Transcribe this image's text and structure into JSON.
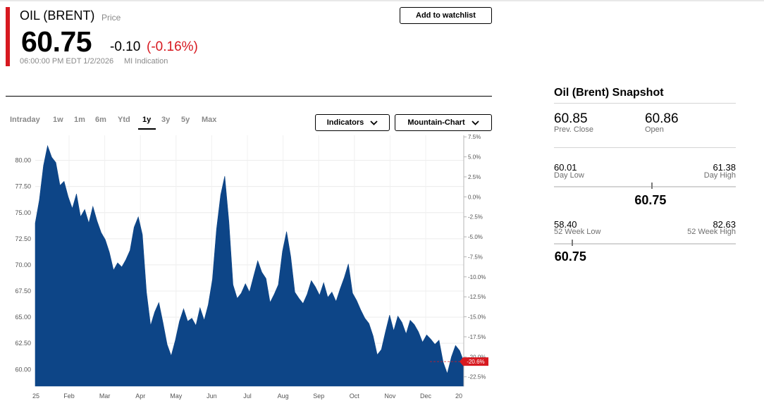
{
  "quote": {
    "name": "OIL (BRENT)",
    "label": "Price",
    "price": "60.75",
    "change": "-0.10",
    "change_pct": "(-0.16%)",
    "timestamp": "06:00:00 PM EDT 1/2/2026",
    "source": "MI Indication"
  },
  "actions": {
    "watchlist_label": "Add to watchlist"
  },
  "timeframes": {
    "tabs": [
      "Intraday",
      "1w",
      "1m",
      "6m",
      "Ytd",
      "1y",
      "3y",
      "5y",
      "Max"
    ],
    "active": "1y"
  },
  "controls": {
    "indicators_label": "Indicators",
    "chart_type_label": "Mountain-Chart"
  },
  "colors": {
    "accent_red": "#d71920",
    "area_fill": "#0d4587",
    "muted_text": "#8a8a8a"
  },
  "icons": {
    "dropdown": "chevron-down-icon"
  },
  "chart_data": {
    "type": "area",
    "title": "",
    "xlabel": "",
    "ylabel": "",
    "ylim": [
      58.4,
      82.4
    ],
    "y_ticks": [
      "80.00",
      "77.50",
      "75.00",
      "72.50",
      "70.00",
      "67.50",
      "65.00",
      "62.50",
      "60.00"
    ],
    "y2_ticks": [
      "7.5%",
      "5.0%",
      "2.5%",
      "0.0%",
      "-2.5%",
      "-5.0%",
      "-7.5%",
      "-10.0%",
      "-12.5%",
      "-15.0%",
      "-17.5%",
      "-20.0%",
      "-22.5%"
    ],
    "x_ticks": [
      "25",
      "Feb",
      "Mar",
      "Apr",
      "May",
      "Jun",
      "Jul",
      "Aug",
      "Sep",
      "Oct",
      "Nov",
      "Dec",
      "20"
    ],
    "last_value_tag": "-20.6%",
    "series": [
      {
        "values": [
          74.0,
          76.2,
          79.5,
          81.4,
          80.3,
          79.8,
          77.6,
          78.0,
          76.5,
          75.4,
          76.8,
          74.6,
          75.3,
          74.0,
          75.6,
          74.2,
          73.1,
          72.4,
          71.2,
          69.5,
          70.2,
          69.8,
          70.5,
          71.4,
          73.6,
          74.6,
          72.9,
          67.4,
          64.2,
          65.5,
          66.4,
          64.5,
          62.4,
          61.3,
          62.8,
          64.6,
          65.8,
          64.6,
          64.9,
          64.2,
          65.9,
          64.7,
          66.2,
          68.6,
          73.4,
          76.7,
          78.5,
          74.1,
          68.1,
          66.8,
          67.3,
          68.2,
          67.4,
          68.9,
          70.4,
          69.3,
          68.7,
          66.4,
          67.2,
          68.1,
          71.3,
          73.2,
          70.8,
          67.4,
          66.8,
          66.3,
          67.2,
          68.5,
          67.9,
          67.1,
          68.3,
          66.9,
          67.4,
          66.5,
          67.7,
          68.8,
          70.1,
          67.3,
          66.6,
          65.7,
          64.9,
          64.4,
          63.2,
          61.4,
          61.9,
          63.6,
          65.2,
          63.7,
          65.1,
          64.5,
          63.4,
          64.7,
          64.3,
          63.6,
          62.6,
          63.3,
          62.9,
          62.4,
          62.8,
          60.7,
          59.6,
          61.2,
          62.3,
          61.8,
          60.75
        ]
      }
    ]
  },
  "snapshot": {
    "title": "Oil (Brent) Snapshot",
    "prev_close": {
      "value": "60.85",
      "label": "Prev. Close"
    },
    "open": {
      "value": "60.86",
      "label": "Open"
    },
    "day_range": {
      "low": "60.01",
      "low_label": "Day Low",
      "high": "61.38",
      "high_label": "Day High",
      "current": "60.75",
      "position": 0.54
    },
    "week52_range": {
      "low": "58.40",
      "low_label": "52 Week Low",
      "high": "82.63",
      "high_label": "52 Week High",
      "current": "60.75",
      "position": 0.1
    }
  }
}
